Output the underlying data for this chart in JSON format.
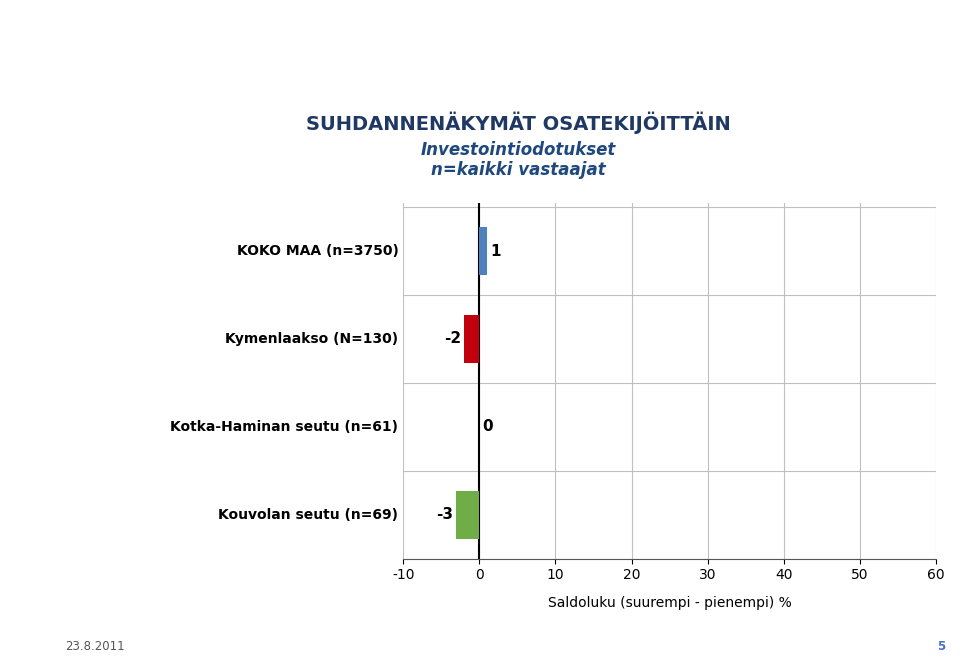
{
  "title_line1": "SUHDANNENÄKYMÄT OSATEKIJÖITTÄIN",
  "title_line2": "Investointiodotukset",
  "title_line3": "n=kaikki vastaajat",
  "categories": [
    "KOKO MAA (n=3750)",
    "Kymenlaakso (N=130)",
    "Kotka-Haminan seutu (n=61)",
    "Kouvolan seutu (n=69)"
  ],
  "values": [
    1,
    -2,
    0,
    -3
  ],
  "bar_colors": [
    "#4f81bd",
    "#c0000c",
    "#70ad47",
    "#70ad47"
  ],
  "xlim": [
    -10,
    60
  ],
  "xticks": [
    -10,
    0,
    10,
    20,
    30,
    40,
    50,
    60
  ],
  "xlabel": "Saldoluku (suurempi - pienempi) %",
  "plot_bg_color": "#ffffff",
  "grid_color": "#c0c0c0",
  "title_color1": "#1f3864",
  "title_color2": "#1f497d",
  "footer_date": "23.8.2011",
  "footer_page": "5",
  "slide_bg": "#ffffff",
  "left_blue_color": "#29abe2",
  "left_red_color": "#c0143c",
  "header_bg": "#ffffff",
  "footer_line_color": "#aaaaaa"
}
